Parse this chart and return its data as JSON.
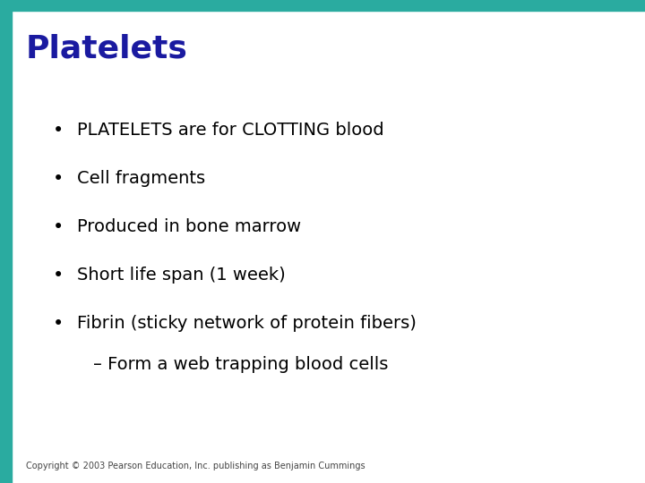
{
  "title": "Platelets",
  "title_color": "#1A1AA0",
  "title_fontsize": 26,
  "bg_color": "#FFFFFF",
  "top_bar_color": "#2AABA0",
  "top_bar_height": 0.022,
  "left_bar_color": "#2AABA0",
  "left_bar_width": 0.018,
  "bullet_points": [
    "PLATELETS are for CLOTTING blood",
    "Cell fragments",
    "Produced in bone marrow",
    "Short life span (1 week)",
    "Fibrin (sticky network of protein fibers)"
  ],
  "sub_bullet": "– Form a web trapping blood cells",
  "bullet_fontsize": 14,
  "sub_bullet_fontsize": 14,
  "bullet_color": "#000000",
  "copyright": "Copyright © 2003 Pearson Education, Inc. publishing as Benjamin Cummings",
  "copyright_fontsize": 7,
  "copyright_color": "#444444"
}
